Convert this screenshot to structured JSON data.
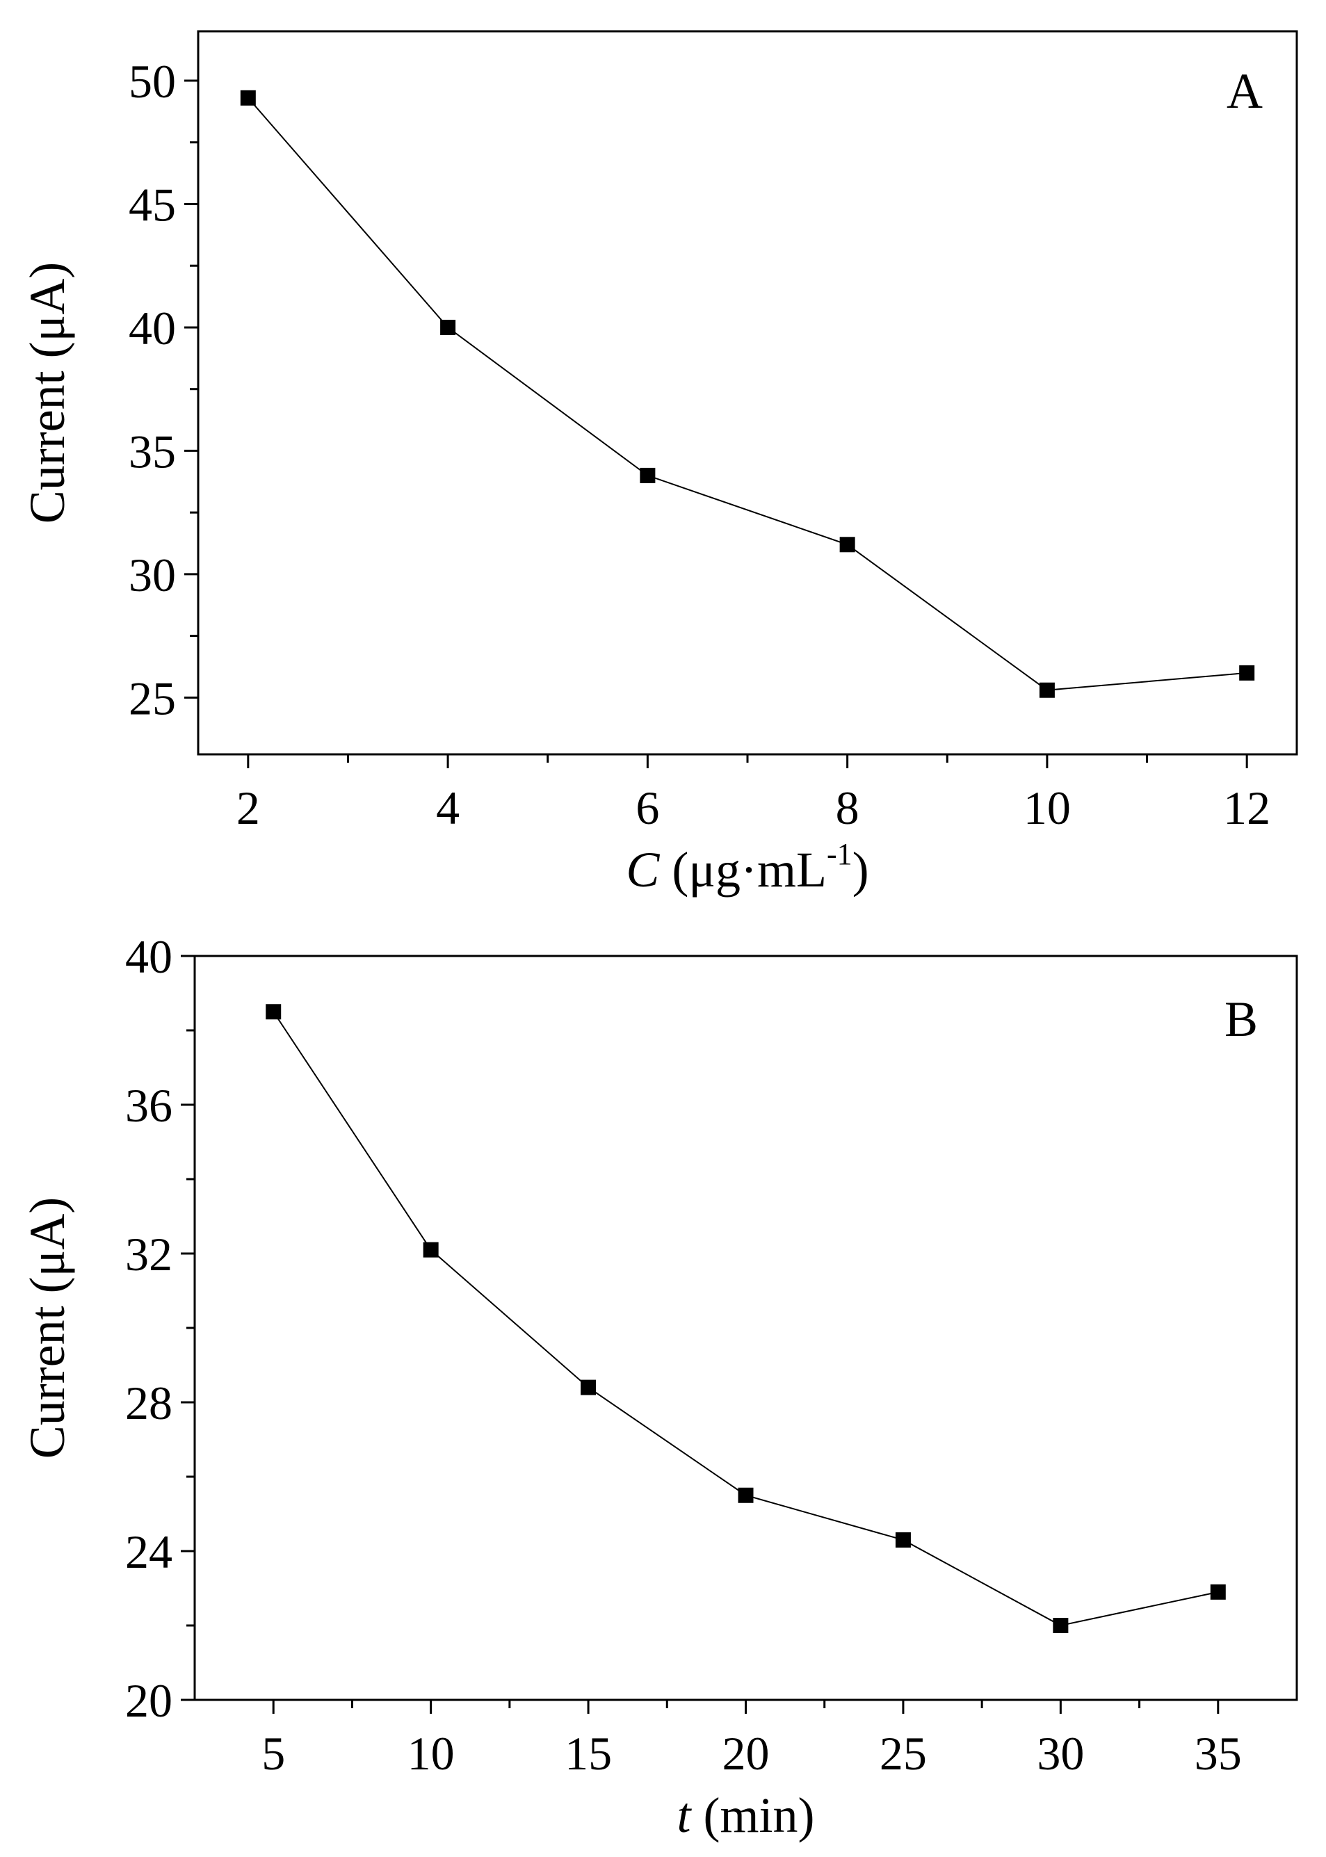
{
  "chart_data": [
    {
      "type": "line",
      "panel_label": "A",
      "x": [
        2,
        4,
        6,
        8,
        10,
        12
      ],
      "series": [
        {
          "values": [
            49.3,
            40.0,
            34.0,
            31.2,
            25.3,
            26.0
          ]
        }
      ],
      "xlabel_italic": "C",
      "xlabel_rest": " (μg·mL",
      "xlabel_sup": "-1",
      "xlabel_close": ")",
      "ylabel": "Current (μA)",
      "xlim": [
        1.5,
        12.5
      ],
      "ylim": [
        22.7,
        52
      ],
      "x_ticks": [
        2,
        4,
        6,
        8,
        10,
        12
      ],
      "y_ticks": [
        25,
        30,
        35,
        40,
        45,
        50
      ],
      "marker": "square",
      "grid": false,
      "color": "#000000"
    },
    {
      "type": "line",
      "panel_label": "B",
      "x": [
        5,
        10,
        15,
        20,
        25,
        30,
        35
      ],
      "series": [
        {
          "values": [
            38.5,
            32.1,
            28.4,
            25.5,
            24.3,
            22.0,
            22.9
          ]
        }
      ],
      "xlabel_italic": "t",
      "xlabel_rest": " (min)",
      "xlabel_sup": "",
      "xlabel_close": "",
      "ylabel": "Current (μA)",
      "xlim": [
        2.5,
        37.5
      ],
      "ylim": [
        20,
        40
      ],
      "x_ticks": [
        5,
        10,
        15,
        20,
        25,
        30,
        35
      ],
      "y_ticks": [
        20,
        24,
        28,
        32,
        36,
        40
      ],
      "marker": "square",
      "grid": false,
      "color": "#000000"
    }
  ]
}
